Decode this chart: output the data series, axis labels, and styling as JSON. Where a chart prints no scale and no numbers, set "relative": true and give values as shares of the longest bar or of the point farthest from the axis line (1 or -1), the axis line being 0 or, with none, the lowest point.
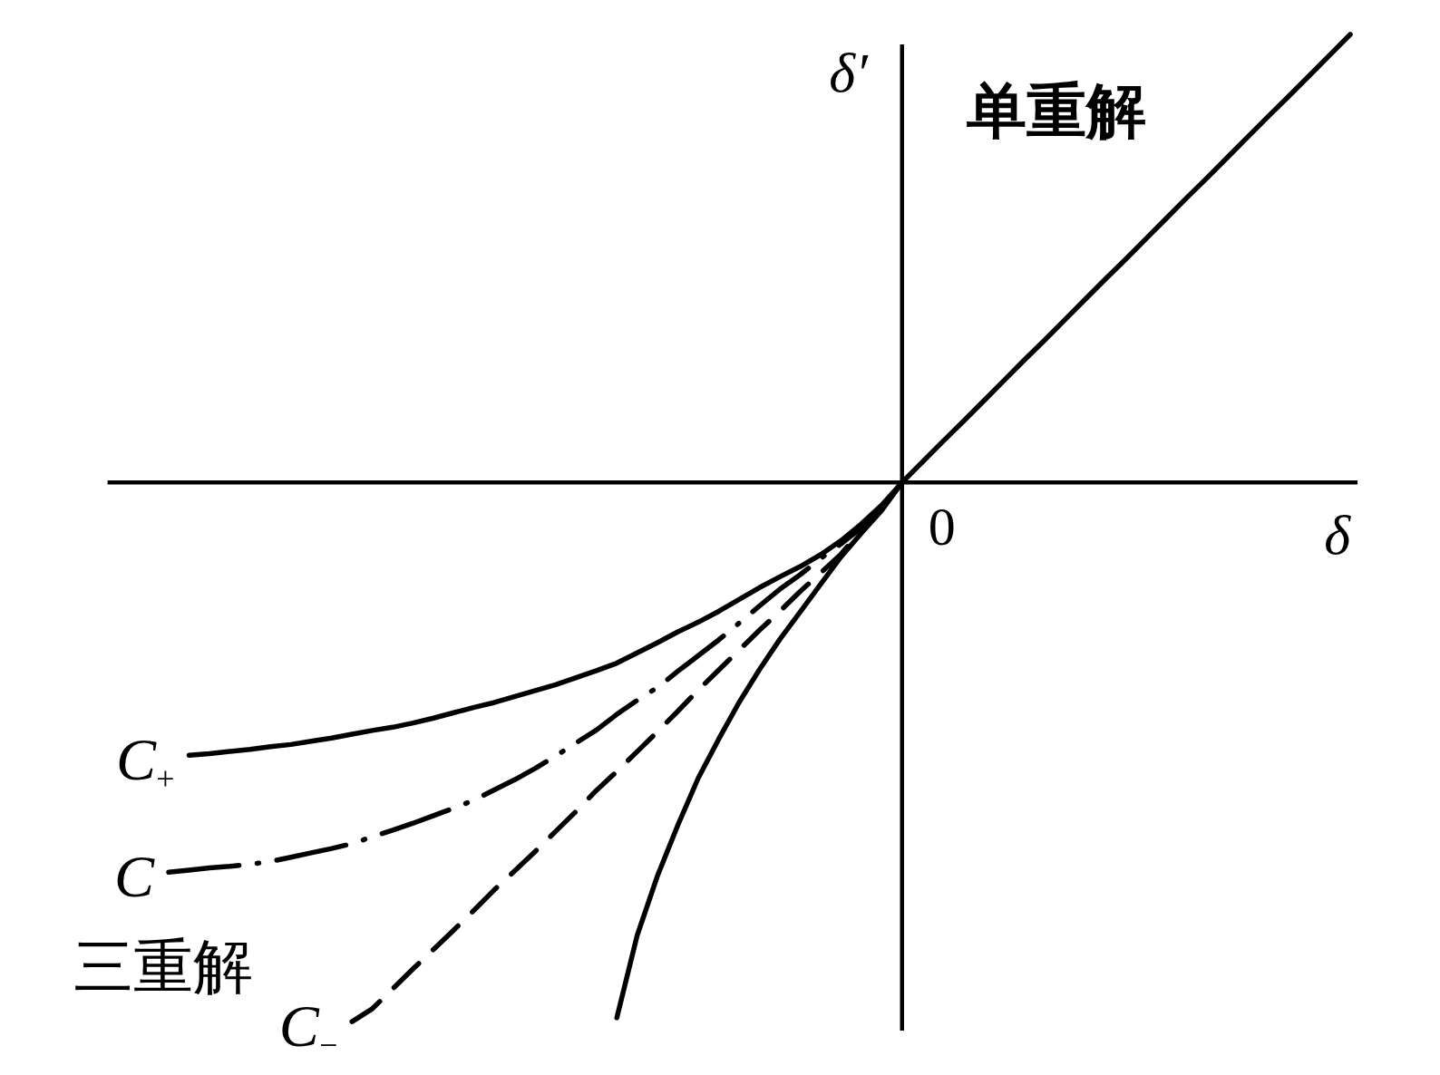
{
  "chart_data": {
    "type": "line",
    "relative": true,
    "xlabel": "δ",
    "ylabel": "δ′",
    "annotations": [
      "单重解",
      "三重解",
      "0"
    ],
    "categories": [
      null,
      null,
      null,
      null,
      null,
      null,
      null,
      null,
      null,
      null,
      null,
      null,
      null,
      null,
      null,
      null,
      null,
      null,
      null,
      null,
      null,
      null,
      null,
      null,
      null,
      null,
      null,
      null,
      null,
      null,
      null,
      null,
      null,
      null,
      null,
      null,
      null,
      null,
      null,
      null,
      null,
      null,
      null,
      null,
      null,
      null,
      null,
      null,
      null,
      null,
      null,
      null,
      null,
      null,
      null,
      null,
      null,
      null,
      null
    ],
    "series": [
      {
        "name": "C$_{+}$",
        "color": "#000000",
        "line_style": "solid",
        "values": [
          null,
          -0.506,
          -0.503,
          -0.499,
          -0.495,
          -0.49,
          -0.486,
          -0.48,
          -0.474,
          -0.467,
          -0.46,
          -0.454,
          -0.446,
          -0.437,
          -0.427,
          -0.417,
          -0.408,
          -0.397,
          -0.386,
          -0.375,
          -0.362,
          -0.349,
          -0.335,
          -0.316,
          -0.297,
          -0.277,
          -0.259,
          -0.239,
          -0.217,
          -0.195,
          -0.175,
          -0.156,
          -0.134,
          -0.108,
          -0.077,
          -0.042,
          0,
          null,
          null,
          null,
          null,
          null,
          null,
          null,
          null,
          null,
          null,
          null,
          null,
          null,
          null,
          null,
          null,
          null,
          null,
          null,
          null,
          null,
          null
        ]
      },
      {
        "name": "C",
        "color": "#000000",
        "line_style": "dashdot",
        "values": [
          -0.723,
          -0.719,
          -0.715,
          -0.712,
          -0.708,
          -0.703,
          -0.695,
          -0.687,
          -0.679,
          -0.67,
          -0.657,
          -0.645,
          -0.632,
          -0.618,
          -0.604,
          -0.589,
          -0.57,
          -0.551,
          -0.53,
          -0.507,
          -0.483,
          -0.459,
          -0.43,
          -0.404,
          -0.38,
          -0.35,
          -0.321,
          -0.292,
          -0.261,
          -0.229,
          -0.198,
          -0.171,
          -0.141,
          -0.114,
          -0.084,
          -0.045,
          0,
          null,
          null,
          null,
          null,
          null,
          null,
          null,
          null,
          null,
          null,
          null,
          null,
          null,
          null,
          null,
          null,
          null,
          null,
          null,
          null,
          null,
          null
        ]
      },
      {
        "name": "C$_{−}$",
        "color": "#000000",
        "line_style": "dashed",
        "values": [
          null,
          null,
          null,
          null,
          null,
          null,
          null,
          null,
          null,
          -1,
          -0.976,
          -0.939,
          -0.902,
          -0.866,
          -0.83,
          -0.793,
          -0.755,
          -0.72,
          -0.684,
          -0.647,
          -0.61,
          -0.571,
          -0.536,
          -0.499,
          -0.462,
          -0.424,
          -0.385,
          -0.348,
          -0.311,
          -0.274,
          -0.239,
          -0.202,
          -0.168,
          -0.133,
          -0.089,
          -0.049,
          0,
          null,
          null,
          null,
          null,
          null,
          null,
          null,
          null,
          null,
          null,
          null,
          null,
          null,
          null,
          null,
          null,
          null,
          null,
          null,
          null,
          null,
          null
        ]
      },
      {
        "color": "#000000",
        "line_style": "solid",
        "values": [
          null,
          null,
          null,
          null,
          null,
          null,
          null,
          null,
          null,
          null,
          null,
          null,
          null,
          null,
          null,
          null,
          null,
          null,
          null,
          null,
          null,
          null,
          -0.993,
          -0.84,
          -0.729,
          -0.635,
          -0.548,
          -0.476,
          -0.408,
          -0.347,
          -0.291,
          -0.24,
          -0.189,
          -0.138,
          -0.094,
          -0.052,
          0,
          0.038,
          0.076,
          0.113,
          0.151,
          0.189,
          0.227,
          0.264,
          0.302,
          0.34,
          0.378,
          0.415,
          0.453,
          0.491,
          0.529,
          0.566,
          0.604,
          0.642,
          0.68,
          0.717,
          0.755,
          0.793,
          0.831
        ]
      }
    ]
  }
}
